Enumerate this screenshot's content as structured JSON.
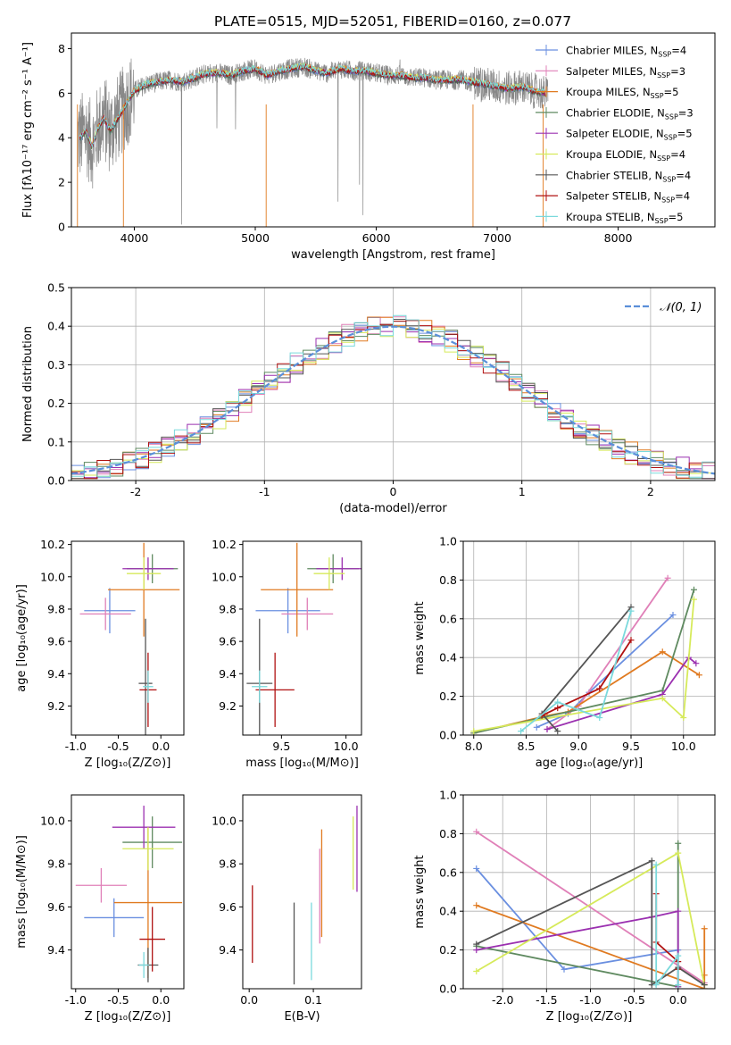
{
  "colors": {
    "Chabrier MILES": "#6a8fe0",
    "Salpeter MILES": "#e080b8",
    "Kroupa MILES": "#e07a20",
    "Chabrier ELODIE": "#5f8a60",
    "Salpeter ELODIE": "#9b30b0",
    "Kroupa ELODIE": "#d6ea5a",
    "Chabrier STELIB": "#555555",
    "Salpeter STELIB": "#b01010",
    "Kroupa STELIB": "#7ad9dc",
    "data": "#888888",
    "normal": "#5b8fd9"
  },
  "chart_data": [
    {
      "id": "spectrum",
      "type": "line",
      "title": "PLATE=0515, MJD=52051, FIBERID=0160, z=0.077",
      "xlabel": "wavelength [Angstrom, rest frame]",
      "ylabel": "Flux [fλ10⁻¹⁷ erg cm⁻² s⁻¹ A⁻¹]",
      "xlim": [
        3480,
        8800
      ],
      "ylim": [
        0,
        8.7
      ],
      "xticks": [
        4000,
        5000,
        6000,
        7000,
        8000
      ],
      "yticks": [
        0,
        2,
        4,
        6,
        8
      ],
      "legend": [
        "Chabrier MILES, N_SSP=4",
        "Salpeter MILES, N_SSP=3",
        "Kroupa MILES, N_SSP=5",
        "Chabrier ELODIE, N_SSP=3",
        "Salpeter ELODIE, N_SSP=5",
        "Kroupa ELODIE, N_SSP=4",
        "Chabrier STELIB, N_SSP=4",
        "Salpeter STELIB, N_SSP=4",
        "Kroupa STELIB, N_SSP=5"
      ],
      "continuum": {
        "x": [
          3550,
          3600,
          3650,
          3700,
          3750,
          3800,
          3900,
          4000,
          4100,
          4200,
          4300,
          4400,
          4500,
          4600,
          4700,
          4800,
          4900,
          5000,
          5100,
          5200,
          5300,
          5400,
          5500,
          5600,
          5700,
          5800,
          5900,
          6000,
          6100,
          6200,
          6300,
          6400,
          6500,
          6600,
          6700,
          6800,
          6900,
          7000,
          7100,
          7200,
          7300,
          7400
        ],
        "y": [
          4.0,
          4.3,
          3.6,
          4.4,
          4.9,
          4.3,
          5.2,
          6.1,
          6.4,
          6.5,
          6.6,
          6.5,
          6.7,
          6.9,
          6.9,
          6.8,
          7.0,
          7.1,
          6.8,
          7.0,
          7.1,
          7.2,
          7.0,
          6.9,
          7.1,
          7.0,
          7.0,
          6.9,
          6.8,
          6.8,
          6.7,
          6.7,
          6.6,
          6.6,
          6.6,
          6.5,
          6.4,
          6.3,
          6.2,
          6.3,
          6.1,
          6.0
        ]
      }
    },
    {
      "id": "residuals",
      "type": "bar",
      "xlabel": "(data-model)/error",
      "ylabel": "Normed distribution",
      "xlim": [
        -2.5,
        2.5
      ],
      "ylim": [
        0,
        0.5
      ],
      "xticks": [
        -2,
        -1,
        0,
        1,
        2
      ],
      "yticks": [
        0.0,
        0.1,
        0.2,
        0.3,
        0.4,
        0.5
      ],
      "legend": [
        "𝒩(0, 1)"
      ],
      "bin_width": 0.1
    },
    {
      "id": "age_vs_Z",
      "type": "scatter",
      "xlabel": "Z [log₁₀(Z/Z⊙)]",
      "ylabel": "age  [log₁₀(age/yr)]",
      "xlim": [
        -1.05,
        0.27
      ],
      "ylim": [
        9.02,
        10.22
      ],
      "xticks": [
        -1.0,
        -0.5,
        0.0
      ],
      "yticks": [
        9.2,
        9.4,
        9.6,
        9.8,
        10.0,
        10.2
      ],
      "points": [
        {
          "model": "Chabrier MILES",
          "x": -0.6,
          "y": 9.79,
          "xerr": 0.3,
          "yerr": 0.14
        },
        {
          "model": "Salpeter MILES",
          "x": -0.65,
          "y": 9.77,
          "xerr": 0.3,
          "yerr": 0.1
        },
        {
          "model": "Kroupa MILES",
          "x": -0.2,
          "y": 9.92,
          "xerr": 0.42,
          "yerr": 0.29
        },
        {
          "model": "Chabrier ELODIE",
          "x": -0.1,
          "y": 10.05,
          "xerr": 0.3,
          "yerr": 0.09
        },
        {
          "model": "Salpeter ELODIE",
          "x": -0.15,
          "y": 10.05,
          "xerr": 0.3,
          "yerr": 0.07
        },
        {
          "model": "Kroupa ELODIE",
          "x": -0.2,
          "y": 10.02,
          "xerr": 0.2,
          "yerr": 0.1
        },
        {
          "model": "Chabrier STELIB",
          "x": -0.18,
          "y": 9.34,
          "xerr": 0.08,
          "yerr": 0.4
        },
        {
          "model": "Salpeter STELIB",
          "x": -0.15,
          "y": 9.3,
          "xerr": 0.1,
          "yerr": 0.23
        },
        {
          "model": "Kroupa STELIB",
          "x": -0.15,
          "y": 9.32,
          "xerr": 0.06,
          "yerr": 0.1
        }
      ]
    },
    {
      "id": "age_vs_mass",
      "type": "scatter",
      "xlabel": "mass [log₁₀(M/M⊙)]",
      "ylabel": "",
      "xlim": [
        9.2,
        10.12
      ],
      "ylim": [
        9.02,
        10.22
      ],
      "xticks": [
        9.5,
        10.0
      ],
      "yticks": [
        9.2,
        9.4,
        9.6,
        9.8,
        10.0,
        10.2
      ],
      "points": [
        {
          "model": "Chabrier MILES",
          "x": 9.55,
          "y": 9.79,
          "xerr": 0.25,
          "yerr": 0.14
        },
        {
          "model": "Salpeter MILES",
          "x": 9.7,
          "y": 9.77,
          "xerr": 0.2,
          "yerr": 0.1
        },
        {
          "model": "Kroupa MILES",
          "x": 9.62,
          "y": 9.92,
          "xerr": 0.28,
          "yerr": 0.29
        },
        {
          "model": "Chabrier ELODIE",
          "x": 9.9,
          "y": 10.05,
          "xerr": 0.2,
          "yerr": 0.09
        },
        {
          "model": "Salpeter ELODIE",
          "x": 9.97,
          "y": 10.05,
          "xerr": 0.2,
          "yerr": 0.07
        },
        {
          "model": "Kroupa ELODIE",
          "x": 9.87,
          "y": 10.02,
          "xerr": 0.12,
          "yerr": 0.1
        },
        {
          "model": "Chabrier STELIB",
          "x": 9.33,
          "y": 9.34,
          "xerr": 0.1,
          "yerr": 0.4
        },
        {
          "model": "Salpeter STELIB",
          "x": 9.45,
          "y": 9.3,
          "xerr": 0.15,
          "yerr": 0.23
        },
        {
          "model": "Kroupa STELIB",
          "x": 9.33,
          "y": 9.32,
          "xerr": 0.06,
          "yerr": 0.1
        }
      ]
    },
    {
      "id": "weight_vs_age",
      "type": "line",
      "xlabel": "age  [log₁₀(age/yr)]",
      "ylabel": "mass weight",
      "xlim": [
        7.9,
        10.3
      ],
      "ylim": [
        0.0,
        1.0
      ],
      "xticks": [
        8.0,
        8.5,
        9.0,
        9.5,
        10.0
      ],
      "yticks": [
        0.0,
        0.2,
        0.4,
        0.6,
        0.8,
        1.0
      ],
      "series": [
        {
          "model": "Chabrier MILES",
          "x": [
            8.6,
            8.9,
            9.1,
            9.9
          ],
          "y": [
            0.04,
            0.11,
            0.22,
            0.62
          ]
        },
        {
          "model": "Salpeter MILES",
          "x": [
            8.7,
            9.0,
            9.85
          ],
          "y": [
            0.03,
            0.15,
            0.81
          ]
        },
        {
          "model": "Kroupa MILES",
          "x": [
            8.0,
            8.7,
            8.9,
            9.8,
            10.15
          ],
          "y": [
            0.01,
            0.1,
            0.12,
            0.43,
            0.31
          ]
        },
        {
          "model": "Chabrier ELODIE",
          "x": [
            8.0,
            9.8,
            10.1
          ],
          "y": [
            0.01,
            0.23,
            0.75
          ]
        },
        {
          "model": "Salpeter ELODIE",
          "x": [
            8.7,
            9.8,
            10.05,
            10.12
          ],
          "y": [
            0.03,
            0.21,
            0.4,
            0.37
          ]
        },
        {
          "model": "Kroupa ELODIE",
          "x": [
            8.0,
            9.8,
            10.0,
            10.1
          ],
          "y": [
            0.02,
            0.19,
            0.09,
            0.7
          ]
        },
        {
          "model": "Chabrier STELIB",
          "x": [
            8.8,
            8.65,
            9.5
          ],
          "y": [
            0.02,
            0.11,
            0.66
          ]
        },
        {
          "model": "Salpeter STELIB",
          "x": [
            8.65,
            8.8,
            9.2,
            9.5
          ],
          "y": [
            0.1,
            0.14,
            0.24,
            0.49
          ]
        },
        {
          "model": "Kroupa STELIB",
          "x": [
            8.45,
            8.8,
            9.2,
            9.5
          ],
          "y": [
            0.02,
            0.17,
            0.09,
            0.64
          ]
        }
      ]
    },
    {
      "id": "mass_vs_Z",
      "type": "scatter",
      "xlabel": "Z [log₁₀(Z/Z⊙)]",
      "ylabel": "mass [log₁₀(M/M⊙)]",
      "xlim": [
        -1.05,
        0.27
      ],
      "ylim": [
        9.22,
        10.12
      ],
      "xticks": [
        -1.0,
        -0.5,
        0.0
      ],
      "yticks": [
        9.4,
        9.6,
        9.8,
        10.0
      ],
      "points": [
        {
          "model": "Chabrier MILES",
          "x": -0.55,
          "y": 9.55,
          "xerr": 0.35,
          "yerr": 0.09
        },
        {
          "model": "Salpeter MILES",
          "x": -0.7,
          "y": 9.7,
          "xerr": 0.3,
          "yerr": 0.08
        },
        {
          "model": "Kroupa MILES",
          "x": -0.15,
          "y": 9.62,
          "xerr": 0.4,
          "yerr": 0.35
        },
        {
          "model": "Chabrier ELODIE",
          "x": -0.1,
          "y": 9.9,
          "xerr": 0.35,
          "yerr": 0.12
        },
        {
          "model": "Salpeter ELODIE",
          "x": -0.2,
          "y": 9.97,
          "xerr": 0.37,
          "yerr": 0.1
        },
        {
          "model": "Kroupa ELODIE",
          "x": -0.15,
          "y": 9.87,
          "xerr": 0.3,
          "yerr": 0.1
        },
        {
          "model": "Chabrier STELIB",
          "x": -0.15,
          "y": 9.33,
          "xerr": 0.12,
          "yerr": 0.08
        },
        {
          "model": "Salpeter STELIB",
          "x": -0.1,
          "y": 9.45,
          "xerr": 0.15,
          "yerr": 0.15
        },
        {
          "model": "Kroupa STELIB",
          "x": -0.2,
          "y": 9.33,
          "xerr": 0.06,
          "yerr": 0.06
        }
      ]
    },
    {
      "id": "mass_vs_ebv",
      "type": "scatter",
      "xlabel": "E(B-V)",
      "ylabel": "",
      "xlim": [
        -0.01,
        0.175
      ],
      "ylim": [
        9.22,
        10.12
      ],
      "xticks": [
        0.0,
        0.1
      ],
      "yticks": [
        9.4,
        9.6,
        9.8,
        10.0
      ],
      "points": [
        {
          "model": "Salpeter STELIB",
          "x": 0.005,
          "y": 9.52,
          "yerr": 0.18
        },
        {
          "model": "Chabrier STELIB",
          "x": 0.07,
          "y": 9.43,
          "yerr": 0.19
        },
        {
          "model": "Kroupa STELIB",
          "x": 0.097,
          "y": 9.44,
          "yerr": 0.18
        },
        {
          "model": "Salpeter MILES",
          "x": 0.11,
          "y": 9.65,
          "yerr": 0.22
        },
        {
          "model": "Kroupa MILES",
          "x": 0.113,
          "y": 9.71,
          "yerr": 0.25
        },
        {
          "model": "Kroupa ELODIE",
          "x": 0.162,
          "y": 9.85,
          "yerr": 0.17
        },
        {
          "model": "Salpeter ELODIE",
          "x": 0.168,
          "y": 9.87,
          "yerr": 0.2
        }
      ]
    },
    {
      "id": "weight_vs_Z",
      "type": "line",
      "xlabel": "Z [log₁₀(Z/Z⊙)]",
      "ylabel": "mass weight",
      "xlim": [
        -2.45,
        0.42
      ],
      "ylim": [
        0.0,
        1.0
      ],
      "xticks": [
        -2.0,
        -1.5,
        -1.0,
        -0.5,
        0.0
      ],
      "yticks": [
        0.0,
        0.2,
        0.4,
        0.6,
        0.8,
        1.0
      ],
      "series": [
        {
          "model": "Chabrier MILES",
          "x": [
            -2.3,
            -1.3,
            0.0
          ],
          "y": [
            0.62,
            0.1,
            0.2
          ]
        },
        {
          "model": "Salpeter MILES",
          "x": [
            -2.3,
            0.3
          ],
          "y": [
            0.81,
            0.03
          ]
        },
        {
          "model": "Kroupa MILES",
          "x": [
            -2.3,
            0.3,
            0.3,
            0.3
          ],
          "y": [
            0.43,
            0.0,
            0.07,
            0.31
          ]
        },
        {
          "model": "Chabrier ELODIE",
          "x": [
            -2.3,
            0.0,
            0.0
          ],
          "y": [
            0.22,
            0.01,
            0.75
          ]
        },
        {
          "model": "Salpeter ELODIE",
          "x": [
            -2.3,
            -0.3,
            0.0,
            0.0
          ],
          "y": [
            0.2,
            0.37,
            0.4,
            0.01
          ]
        },
        {
          "model": "Kroupa ELODIE",
          "x": [
            -2.3,
            0.0,
            0.3
          ],
          "y": [
            0.09,
            0.7,
            0.02
          ]
        },
        {
          "model": "Chabrier STELIB",
          "x": [
            -2.3,
            -0.3,
            -0.3,
            0.0,
            0.3
          ],
          "y": [
            0.23,
            0.66,
            0.02,
            0.11,
            0.02
          ]
        },
        {
          "model": "Salpeter STELIB",
          "x": [
            -0.25,
            -0.25,
            0.0,
            0.0
          ],
          "y": [
            0.49,
            0.24,
            0.14,
            0.1
          ]
        },
        {
          "model": "Kroupa STELIB",
          "x": [
            -0.25,
            -0.25,
            0.0,
            0.0
          ],
          "y": [
            0.64,
            0.02,
            0.17,
            0.02
          ]
        }
      ]
    }
  ]
}
